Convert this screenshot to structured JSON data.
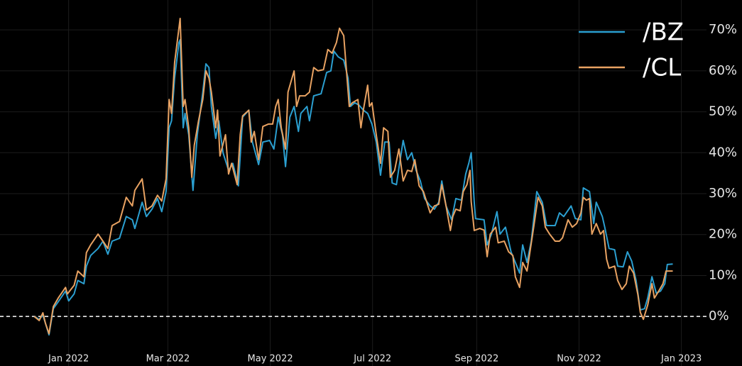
{
  "chart_data": {
    "type": "line",
    "xlim": [
      2021.888,
      2023.041
    ],
    "xticks": [
      {
        "value": 2022.0,
        "label": "Jan 2022"
      },
      {
        "value": 2022.162,
        "label": "Mar 2022"
      },
      {
        "value": 2022.329,
        "label": "May 2022"
      },
      {
        "value": 2022.496,
        "label": "Jul 2022"
      },
      {
        "value": 2022.666,
        "label": "Sep 2022"
      },
      {
        "value": 2022.833,
        "label": "Nov 2022"
      },
      {
        "value": 2023.0,
        "label": "Jan 2023"
      }
    ],
    "ylim": [
      -12.1,
      77.3
    ],
    "yticks": [
      {
        "value": 0,
        "label": "0%"
      },
      {
        "value": 10,
        "label": "10%"
      },
      {
        "value": 20,
        "label": "20%"
      },
      {
        "value": 30,
        "label": "30%"
      },
      {
        "value": 40,
        "label": "40%"
      },
      {
        "value": 50,
        "label": "50%"
      },
      {
        "value": 60,
        "label": "60%"
      },
      {
        "value": 70,
        "label": "70%"
      }
    ],
    "grid": true,
    "hline": 0,
    "legend": "upper right",
    "series": [
      {
        "name": "/BZ",
        "color": "#2b9fd0",
        "x": [
          2021.944,
          2021.952,
          2021.958,
          2021.962,
          2021.968,
          2021.975,
          2021.983,
          2021.995,
          2022.0,
          2022.009,
          2022.015,
          2022.025,
          2022.029,
          2022.036,
          2022.048,
          2022.056,
          2022.064,
          2022.071,
          2022.083,
          2022.094,
          2022.104,
          2022.108,
          2022.12,
          2022.127,
          2022.136,
          2022.145,
          2022.152,
          2022.159,
          2022.164,
          2022.168,
          2022.173,
          2022.18,
          2022.182,
          2022.187,
          2022.19,
          2022.196,
          2022.203,
          2022.21,
          2022.219,
          2022.224,
          2022.229,
          2022.233,
          2022.24,
          2022.245,
          2022.252,
          2022.261,
          2022.268,
          2022.277,
          2022.284,
          2022.294,
          2022.3,
          2022.31,
          2022.317,
          2022.328,
          2022.335,
          2022.342,
          2022.349,
          2022.354,
          2022.361,
          2022.368,
          2022.375,
          2022.379,
          2022.389,
          2022.393,
          2022.4,
          2022.412,
          2022.421,
          2022.428,
          2022.433,
          2022.44,
          2022.449,
          2022.456,
          2022.46,
          2022.467,
          2022.474,
          2022.481,
          2022.488,
          2022.495,
          2022.502,
          2022.509,
          2022.516,
          2022.523,
          2022.528,
          2022.535,
          2022.542,
          2022.546,
          2022.553,
          2022.56,
          2022.567,
          2022.574,
          2022.581,
          2022.59,
          2022.597,
          2022.604,
          2022.609,
          2022.616,
          2022.625,
          2022.632,
          2022.641,
          2022.648,
          2022.653,
          2022.657,
          2022.662,
          2022.664,
          2022.678,
          2022.683,
          2022.69,
          2022.699,
          2022.704,
          2022.713,
          2022.722,
          2022.729,
          2022.736,
          2022.741,
          2022.748,
          2022.755,
          2022.764,
          2022.773,
          2022.78,
          2022.787,
          2022.794,
          2022.801,
          2022.808,
          2022.82,
          2022.827,
          2022.836,
          2022.84,
          2022.85,
          2022.857,
          2022.861,
          2022.871,
          2022.875,
          2022.882,
          2022.891,
          2022.896,
          2022.905,
          2022.912,
          2022.919,
          2022.926,
          2022.933,
          2022.94,
          2022.945,
          2022.952,
          2022.959,
          2022.966,
          2022.973,
          2022.977,
          2022.986
        ],
        "values": [
          0,
          -0.7,
          0.3,
          -1.6,
          -4.5,
          1.9,
          3.6,
          6.2,
          3.8,
          5.5,
          8.8,
          8.0,
          12.3,
          14.9,
          16.6,
          18.4,
          15.2,
          18.4,
          19.1,
          24.4,
          23.6,
          21.5,
          27.9,
          24.4,
          26.2,
          28.8,
          25.6,
          30.5,
          46.1,
          47.8,
          58.2,
          66.9,
          67.6,
          46.1,
          49.6,
          44.4,
          30.8,
          44.4,
          54.8,
          61.7,
          60.8,
          51.3,
          43.5,
          47.8,
          40.0,
          35.7,
          37.4,
          31.9,
          48.7,
          50.4,
          42.6,
          37.1,
          42.6,
          43.0,
          40.9,
          48.7,
          44.4,
          36.6,
          48.7,
          51.3,
          45.2,
          49.6,
          51.3,
          47.8,
          53.9,
          54.4,
          59.6,
          60.0,
          64.8,
          63.4,
          62.6,
          58.2,
          51.3,
          52.2,
          51.6,
          50.4,
          49.6,
          47.0,
          42.6,
          34.5,
          42.6,
          42.6,
          32.6,
          32.2,
          39.2,
          43.0,
          38.3,
          40.0,
          35.7,
          33.1,
          28.8,
          27.0,
          26.2,
          27.9,
          33.1,
          27.0,
          23.6,
          28.8,
          28.4,
          34.8,
          37.4,
          40.0,
          27.9,
          23.9,
          23.6,
          17.5,
          20.1,
          25.6,
          20.1,
          21.8,
          15.8,
          13.2,
          10.6,
          17.5,
          13.2,
          18.4,
          30.5,
          27.9,
          22.2,
          22.2,
          22.2,
          25.3,
          24.4,
          27.0,
          23.9,
          23.6,
          31.4,
          30.5,
          22.7,
          27.9,
          24.4,
          21.8,
          16.6,
          16.3,
          12.3,
          12.1,
          15.8,
          13.5,
          8.8,
          1.6,
          1.9,
          4.5,
          9.7,
          5.7,
          6.2,
          8.0,
          12.7,
          12.8
        ]
      },
      {
        "name": "/CL",
        "color": "#e8a262",
        "x": [
          2021.944,
          2021.952,
          2021.958,
          2021.962,
          2021.968,
          2021.975,
          2021.983,
          2021.995,
          2021.998,
          2022.009,
          2022.015,
          2022.025,
          2022.029,
          2022.036,
          2022.048,
          2022.056,
          2022.064,
          2022.071,
          2022.083,
          2022.094,
          2022.104,
          2022.108,
          2022.12,
          2022.127,
          2022.136,
          2022.145,
          2022.152,
          2022.159,
          2022.164,
          2022.168,
          2022.173,
          2022.18,
          2022.182,
          2022.187,
          2022.19,
          2022.196,
          2022.201,
          2022.205,
          2022.212,
          2022.219,
          2022.224,
          2022.229,
          2022.233,
          2022.24,
          2022.243,
          2022.247,
          2022.256,
          2022.261,
          2022.266,
          2022.275,
          2022.28,
          2022.284,
          2022.294,
          2022.298,
          2022.303,
          2022.31,
          2022.317,
          2022.326,
          2022.333,
          2022.338,
          2022.342,
          2022.347,
          2022.354,
          2022.358,
          2022.368,
          2022.372,
          2022.377,
          2022.386,
          2022.393,
          2022.4,
          2022.407,
          2022.416,
          2022.423,
          2022.43,
          2022.437,
          2022.442,
          2022.449,
          2022.453,
          2022.458,
          2022.463,
          2022.472,
          2022.477,
          2022.481,
          2022.488,
          2022.491,
          2022.495,
          2022.502,
          2022.509,
          2022.514,
          2022.521,
          2022.525,
          2022.532,
          2022.539,
          2022.546,
          2022.553,
          2022.56,
          2022.565,
          2022.572,
          2022.579,
          2022.59,
          2022.597,
          2022.604,
          2022.609,
          2022.616,
          2022.623,
          2022.627,
          2022.632,
          2022.639,
          2022.644,
          2022.65,
          2022.655,
          2022.657,
          2022.662,
          2022.671,
          2022.678,
          2022.683,
          2022.688,
          2022.697,
          2022.701,
          2022.711,
          2022.718,
          2022.725,
          2022.729,
          2022.736,
          2022.741,
          2022.748,
          2022.752,
          2022.759,
          2022.766,
          2022.773,
          2022.778,
          2022.785,
          2022.794,
          2022.801,
          2022.806,
          2022.815,
          2022.822,
          2022.829,
          2022.836,
          2022.84,
          2022.845,
          2022.85,
          2022.854,
          2022.861,
          2022.868,
          2022.873,
          2022.878,
          2022.882,
          2022.891,
          2022.896,
          2022.903,
          2022.91,
          2022.915,
          2022.922,
          2022.929,
          2022.933,
          2022.938,
          2022.945,
          2022.952,
          2022.956,
          2022.963,
          2022.97,
          2022.975,
          2022.986
        ],
        "values": [
          0,
          -1.0,
          0.9,
          -1.6,
          -4.2,
          2.4,
          4.5,
          7.1,
          5.5,
          7.6,
          11.1,
          9.7,
          15.6,
          17.5,
          20.1,
          18.4,
          16.6,
          22.2,
          23.2,
          29.1,
          27.0,
          30.8,
          33.6,
          26.0,
          27.0,
          29.6,
          28.2,
          33.6,
          53.0,
          49.6,
          62.0,
          70.4,
          72.8,
          51.3,
          53.0,
          46.1,
          34.0,
          41.8,
          47.8,
          53.0,
          60.0,
          58.2,
          54.8,
          46.1,
          50.4,
          39.2,
          44.4,
          34.8,
          37.4,
          32.2,
          44.4,
          49.0,
          50.4,
          42.6,
          45.2,
          38.3,
          46.4,
          47.0,
          47.0,
          51.3,
          53.0,
          46.1,
          40.9,
          54.8,
          60.0,
          51.3,
          53.9,
          53.9,
          54.8,
          60.8,
          60.0,
          60.3,
          65.2,
          64.3,
          66.9,
          70.4,
          68.6,
          60.8,
          51.3,
          52.2,
          53.0,
          46.1,
          50.4,
          56.5,
          51.3,
          52.2,
          44.4,
          37.4,
          46.1,
          45.2,
          34.0,
          35.7,
          40.9,
          33.1,
          35.7,
          35.4,
          38.3,
          31.9,
          30.5,
          25.3,
          27.0,
          27.4,
          32.2,
          27.0,
          21.0,
          24.4,
          26.2,
          25.8,
          30.5,
          32.2,
          35.7,
          28.1,
          21.0,
          21.5,
          21.1,
          14.6,
          20.1,
          21.8,
          18.0,
          18.4,
          15.8,
          14.9,
          9.7,
          7.1,
          13.2,
          11.1,
          14.9,
          21.8,
          29.1,
          27.0,
          21.8,
          20.1,
          18.4,
          18.4,
          19.2,
          23.6,
          21.8,
          22.7,
          25.3,
          29.1,
          28.4,
          28.8,
          20.1,
          22.7,
          20.1,
          21.0,
          14.0,
          11.8,
          12.3,
          8.8,
          6.6,
          8.0,
          12.3,
          10.6,
          5.4,
          1.0,
          -0.7,
          2.8,
          8.0,
          4.5,
          6.2,
          8.0,
          11.1,
          11.1
        ]
      }
    ]
  }
}
